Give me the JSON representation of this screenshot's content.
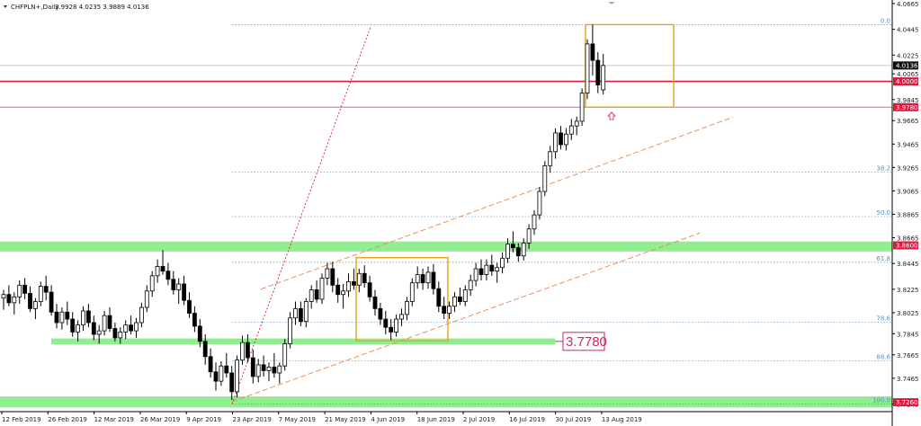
{
  "header": {
    "symbol": "CHFPLN+,Daily",
    "ohlc": "3.9928 4.0235 3.9889 4.0136"
  },
  "chart_data": {
    "type": "candlestick",
    "symbol": "CHFPLN+",
    "timeframe": "Daily",
    "ylim": [
      3.718,
      4.068
    ],
    "y_ticks": [
      "4.0665",
      "4.0445",
      "4.0225",
      "4.0065",
      "3.9845",
      "3.9665",
      "3.9465",
      "3.9265",
      "3.9065",
      "3.8865",
      "3.8665",
      "3.8445",
      "3.8225",
      "3.8025",
      "3.7845",
      "3.7665",
      "3.7465",
      "3.7245"
    ],
    "x_ticks": [
      "12 Feb 2019",
      "26 Feb 2019",
      "12 Mar 2019",
      "26 Mar 2019",
      "9 Apr 2019",
      "23 Apr 2019",
      "7 May 2019",
      "21 May 2019",
      "4 Jun 2019",
      "18 Jun 2019",
      "2 Jul 2019",
      "16 Jul 2019",
      "30 Jul 2019",
      "13 Aug 2019"
    ],
    "price_tags": [
      {
        "label": "4.0136",
        "value": 4.0136,
        "color": "#111111",
        "text_color": "#ffffff"
      },
      {
        "label": "4.0000",
        "value": 4.0,
        "color": "#d81b3f",
        "text_color": "#ffffff"
      },
      {
        "label": "3.9780",
        "value": 3.978,
        "color": "#d81b3f",
        "text_color": "#ffffff"
      },
      {
        "label": "3.8600",
        "value": 3.86,
        "color": "#d81b3f",
        "text_color": "#ffffff"
      },
      {
        "label": "3.7260",
        "value": 3.726,
        "color": "#d81b3f",
        "text_color": "#ffffff"
      }
    ],
    "fibonacci_levels": [
      {
        "label": "0.0",
        "value": 4.0485
      },
      {
        "label": "38.2",
        "value": 3.9225
      },
      {
        "label": "50.0",
        "value": 3.8845
      },
      {
        "label": "61.8",
        "value": 3.8455
      },
      {
        "label": "78.6",
        "value": 3.7945
      },
      {
        "label": "88.6",
        "value": 3.7615
      },
      {
        "label": "100.0",
        "value": 3.7245
      }
    ],
    "support_annotation": "3.7780",
    "colors": {
      "support_zone": "#90ee90",
      "resistance_line": "#d81b3f",
      "highlight_box": "#e8a317",
      "channel": "#e8874a",
      "fib": "#5a8fc4"
    },
    "candles": [
      [
        3.815,
        3.822,
        3.805,
        3.818
      ],
      [
        3.818,
        3.826,
        3.808,
        3.811
      ],
      [
        3.811,
        3.82,
        3.801,
        3.816
      ],
      [
        3.816,
        3.83,
        3.81,
        3.826
      ],
      [
        3.826,
        3.832,
        3.814,
        3.819
      ],
      [
        3.819,
        3.825,
        3.803,
        3.806
      ],
      [
        3.806,
        3.815,
        3.797,
        3.812
      ],
      [
        3.812,
        3.829,
        3.808,
        3.825
      ],
      [
        3.825,
        3.834,
        3.813,
        3.82
      ],
      [
        3.82,
        3.826,
        3.8,
        3.803
      ],
      [
        3.803,
        3.81,
        3.789,
        3.794
      ],
      [
        3.794,
        3.807,
        3.788,
        3.803
      ],
      [
        3.803,
        3.812,
        3.792,
        3.797
      ],
      [
        3.797,
        3.803,
        3.782,
        3.786
      ],
      [
        3.786,
        3.796,
        3.778,
        3.792
      ],
      [
        3.792,
        3.808,
        3.787,
        3.804
      ],
      [
        3.804,
        3.81,
        3.79,
        3.794
      ],
      [
        3.794,
        3.8,
        3.779,
        3.784
      ],
      [
        3.784,
        3.792,
        3.776,
        3.787
      ],
      [
        3.787,
        3.804,
        3.783,
        3.8
      ],
      [
        3.8,
        3.807,
        3.786,
        3.789
      ],
      [
        3.789,
        3.794,
        3.778,
        3.781
      ],
      [
        3.781,
        3.79,
        3.776,
        3.786
      ],
      [
        3.786,
        3.796,
        3.78,
        3.792
      ],
      [
        3.792,
        3.8,
        3.784,
        3.787
      ],
      [
        3.787,
        3.798,
        3.781,
        3.794
      ],
      [
        3.794,
        3.811,
        3.79,
        3.807
      ],
      [
        3.807,
        3.826,
        3.803,
        3.821
      ],
      [
        3.821,
        3.838,
        3.816,
        3.834
      ],
      [
        3.834,
        3.848,
        3.828,
        3.842
      ],
      [
        3.842,
        3.856,
        3.835,
        3.838
      ],
      [
        3.838,
        3.845,
        3.826,
        3.831
      ],
      [
        3.831,
        3.838,
        3.818,
        3.822
      ],
      [
        3.822,
        3.832,
        3.81,
        3.827
      ],
      [
        3.827,
        3.834,
        3.809,
        3.813
      ],
      [
        3.813,
        3.82,
        3.798,
        3.802
      ],
      [
        3.802,
        3.808,
        3.786,
        3.791
      ],
      [
        3.791,
        3.797,
        3.773,
        3.778
      ],
      [
        3.778,
        3.784,
        3.758,
        3.765
      ],
      [
        3.765,
        3.772,
        3.747,
        3.752
      ],
      [
        3.752,
        3.76,
        3.736,
        3.744
      ],
      [
        3.744,
        3.761,
        3.74,
        3.757
      ],
      [
        3.757,
        3.768,
        3.747,
        3.751
      ],
      [
        3.751,
        3.757,
        3.728,
        3.735
      ],
      [
        3.735,
        3.766,
        3.73,
        3.762
      ],
      [
        3.762,
        3.783,
        3.758,
        3.777
      ],
      [
        3.777,
        3.784,
        3.76,
        3.764
      ],
      [
        3.764,
        3.771,
        3.742,
        3.748
      ],
      [
        3.748,
        3.763,
        3.743,
        3.758
      ],
      [
        3.758,
        3.766,
        3.748,
        3.753
      ],
      [
        3.753,
        3.76,
        3.744,
        3.756
      ],
      [
        3.756,
        3.768,
        3.747,
        3.751
      ],
      [
        3.751,
        3.76,
        3.742,
        3.757
      ],
      [
        3.757,
        3.78,
        3.753,
        3.776
      ],
      [
        3.776,
        3.803,
        3.772,
        3.798
      ],
      [
        3.798,
        3.812,
        3.792,
        3.806
      ],
      [
        3.806,
        3.812,
        3.791,
        3.795
      ],
      [
        3.795,
        3.815,
        3.79,
        3.812
      ],
      [
        3.812,
        3.826,
        3.806,
        3.822
      ],
      [
        3.822,
        3.83,
        3.811,
        3.814
      ],
      [
        3.814,
        3.836,
        3.81,
        3.832
      ],
      [
        3.832,
        3.845,
        3.826,
        3.84
      ],
      [
        3.84,
        3.846,
        3.82,
        3.826
      ],
      [
        3.826,
        3.832,
        3.811,
        3.818
      ],
      [
        3.818,
        3.827,
        3.806,
        3.821
      ],
      [
        3.821,
        3.836,
        3.816,
        3.829
      ],
      [
        3.829,
        3.84,
        3.822,
        3.826
      ],
      [
        3.826,
        3.84,
        3.82,
        3.836
      ],
      [
        3.836,
        3.843,
        3.824,
        3.828
      ],
      [
        3.828,
        3.834,
        3.812,
        3.816
      ],
      [
        3.816,
        3.822,
        3.8,
        3.806
      ],
      [
        3.806,
        3.811,
        3.792,
        3.797
      ],
      [
        3.797,
        3.804,
        3.784,
        3.79
      ],
      [
        3.79,
        3.797,
        3.779,
        3.786
      ],
      [
        3.786,
        3.801,
        3.782,
        3.797
      ],
      [
        3.797,
        3.806,
        3.791,
        3.801
      ],
      [
        3.801,
        3.816,
        3.796,
        3.812
      ],
      [
        3.812,
        3.832,
        3.808,
        3.828
      ],
      [
        3.828,
        3.842,
        3.823,
        3.835
      ],
      [
        3.835,
        3.84,
        3.822,
        3.828
      ],
      [
        3.828,
        3.842,
        3.823,
        3.837
      ],
      [
        3.837,
        3.844,
        3.818,
        3.823
      ],
      [
        3.823,
        3.829,
        3.803,
        3.808
      ],
      [
        3.808,
        3.816,
        3.797,
        3.802
      ],
      [
        3.802,
        3.812,
        3.797,
        3.808
      ],
      [
        3.808,
        3.82,
        3.803,
        3.816
      ],
      [
        3.816,
        3.824,
        3.809,
        3.812
      ],
      [
        3.812,
        3.826,
        3.808,
        3.822
      ],
      [
        3.822,
        3.835,
        3.817,
        3.83
      ],
      [
        3.83,
        3.845,
        3.825,
        3.84
      ],
      [
        3.84,
        3.848,
        3.83,
        3.835
      ],
      [
        3.835,
        3.848,
        3.83,
        3.843
      ],
      [
        3.843,
        3.852,
        3.834,
        3.838
      ],
      [
        3.838,
        3.845,
        3.828,
        3.841
      ],
      [
        3.841,
        3.854,
        3.836,
        3.849
      ],
      [
        3.849,
        3.866,
        3.845,
        3.861
      ],
      [
        3.861,
        3.872,
        3.854,
        3.858
      ],
      [
        3.858,
        3.862,
        3.846,
        3.851
      ],
      [
        3.851,
        3.866,
        3.847,
        3.862
      ],
      [
        3.862,
        3.878,
        3.857,
        3.874
      ],
      [
        3.874,
        3.89,
        3.869,
        3.886
      ],
      [
        3.886,
        3.91,
        3.882,
        3.906
      ],
      [
        3.906,
        3.932,
        3.902,
        3.928
      ],
      [
        3.928,
        3.945,
        3.922,
        3.94
      ],
      [
        3.94,
        3.96,
        3.934,
        3.956
      ],
      [
        3.956,
        3.962,
        3.942,
        3.946
      ],
      [
        3.946,
        3.96,
        3.941,
        3.955
      ],
      [
        3.955,
        3.968,
        3.95,
        3.962
      ],
      [
        3.962,
        3.97,
        3.954,
        3.966
      ],
      [
        3.966,
        3.994,
        3.962,
        3.99
      ],
      [
        3.99,
        4.036,
        3.985,
        4.032
      ],
      [
        4.032,
        4.0485,
        4.005,
        4.018
      ],
      [
        4.018,
        4.025,
        3.99,
        3.997
      ],
      [
        3.9928,
        4.0235,
        3.9889,
        4.0136
      ]
    ]
  }
}
